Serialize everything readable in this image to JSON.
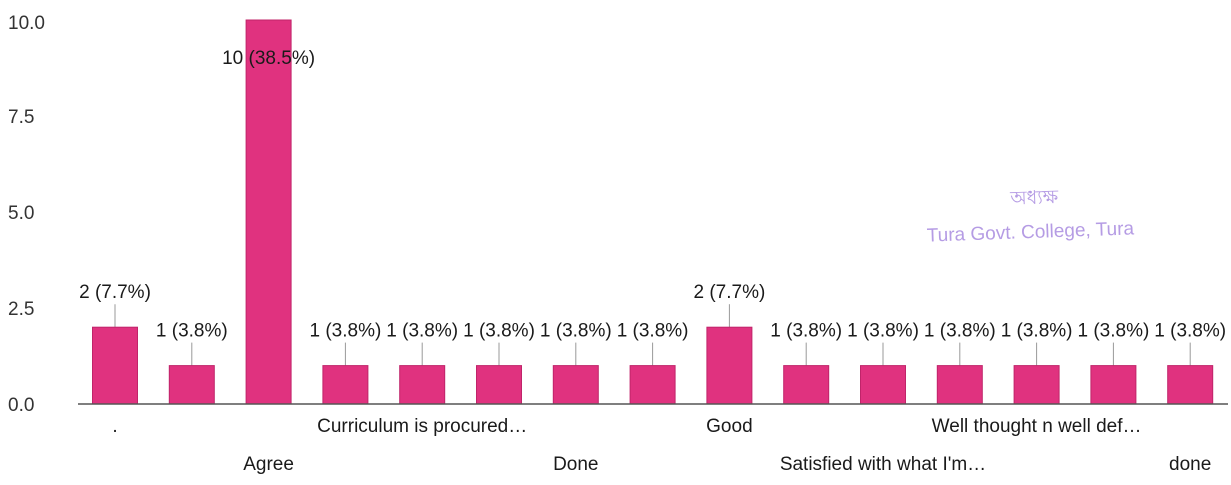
{
  "colors": {
    "bar": "#e0327f",
    "bar_edge": "#c0246a",
    "axis": "#555555",
    "leader": "#999999",
    "stamp": "#a98be0"
  },
  "stamp": {
    "line1": "অধ্যক্ষ",
    "line2": "Tura Govt. College, Tura"
  },
  "chart_data": {
    "type": "bar",
    "ylim": [
      0,
      10
    ],
    "yticks": [
      "0.0",
      "2.5",
      "5.0",
      "7.5",
      "10.0"
    ],
    "grid": false,
    "legend": "none",
    "title": "",
    "xlabel": "",
    "ylabel": "",
    "values": [
      2,
      1,
      10,
      1,
      1,
      1,
      1,
      1,
      2,
      1,
      1,
      1,
      1,
      1,
      1
    ],
    "data_labels": [
      "2 (7.7%)",
      "1 (3.8%)",
      "10 (38.5%)",
      "1 (3.8%)",
      "1 (3.8%)",
      "1 (3.8%)",
      "1 (3.8%)",
      "1 (3.8%)",
      "2 (7.7%)",
      "1 (3.8%)",
      "1 (3.8%)",
      "1 (3.8%)",
      "1 (3.8%)",
      "1 (3.8%)",
      "1 (3.8%)"
    ],
    "category_labels": [
      {
        "text": ".",
        "row": 1
      },
      {
        "text": "Agree",
        "row": 2
      },
      {
        "text": "Curriculum is procured…",
        "row": 1
      },
      {
        "text": "Done",
        "row": 2
      },
      {
        "text": "Good",
        "row": 1
      },
      {
        "text": "Satisfied with what I'm…",
        "row": 2
      },
      {
        "text": "Well thought n well def…",
        "row": 1
      },
      {
        "text": "done",
        "row": 2
      }
    ]
  }
}
